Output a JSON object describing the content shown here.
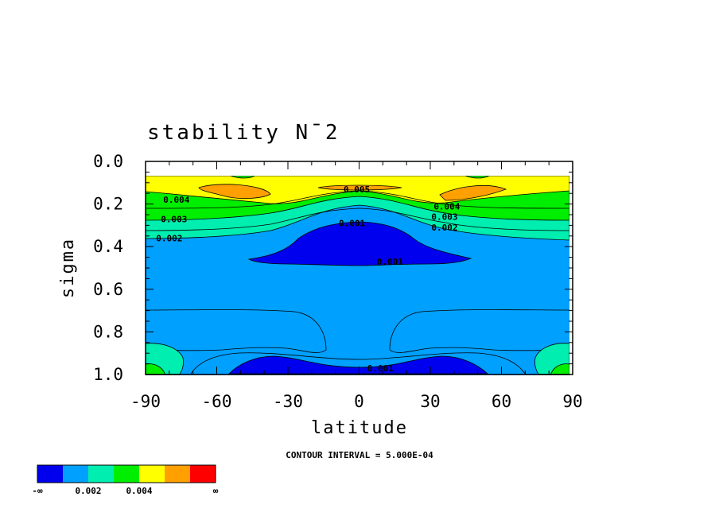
{
  "chart_data": {
    "type": "contour",
    "title": "stability N¯2",
    "xlabel": "latitude",
    "ylabel": "sigma",
    "xlim": [
      -90,
      90
    ],
    "ylim": [
      0.0,
      1.0
    ],
    "y_inverted": true,
    "x_ticks": [
      "-90",
      "-60",
      "-30",
      "0",
      "30",
      "60",
      "90"
    ],
    "y_ticks": [
      "0.0",
      "0.2",
      "0.4",
      "0.6",
      "0.8",
      "1.0"
    ],
    "contour_interval_text": "CONTOUR INTERVAL = 5.000E-04",
    "contour_labels": [
      "0.004",
      "0.003",
      "0.002",
      "0.005",
      "0.001",
      "0.001",
      "0.001",
      "0.004",
      "0.003",
      "0.002"
    ],
    "colorbar": {
      "colors": [
        "#0000ee",
        "#00a0ff",
        "#00eeb0",
        "#00ee00",
        "#ffff00",
        "#ffa000",
        "#ff0000"
      ],
      "labels": [
        "-∞",
        "0.002",
        "0.004",
        "∞"
      ]
    }
  }
}
